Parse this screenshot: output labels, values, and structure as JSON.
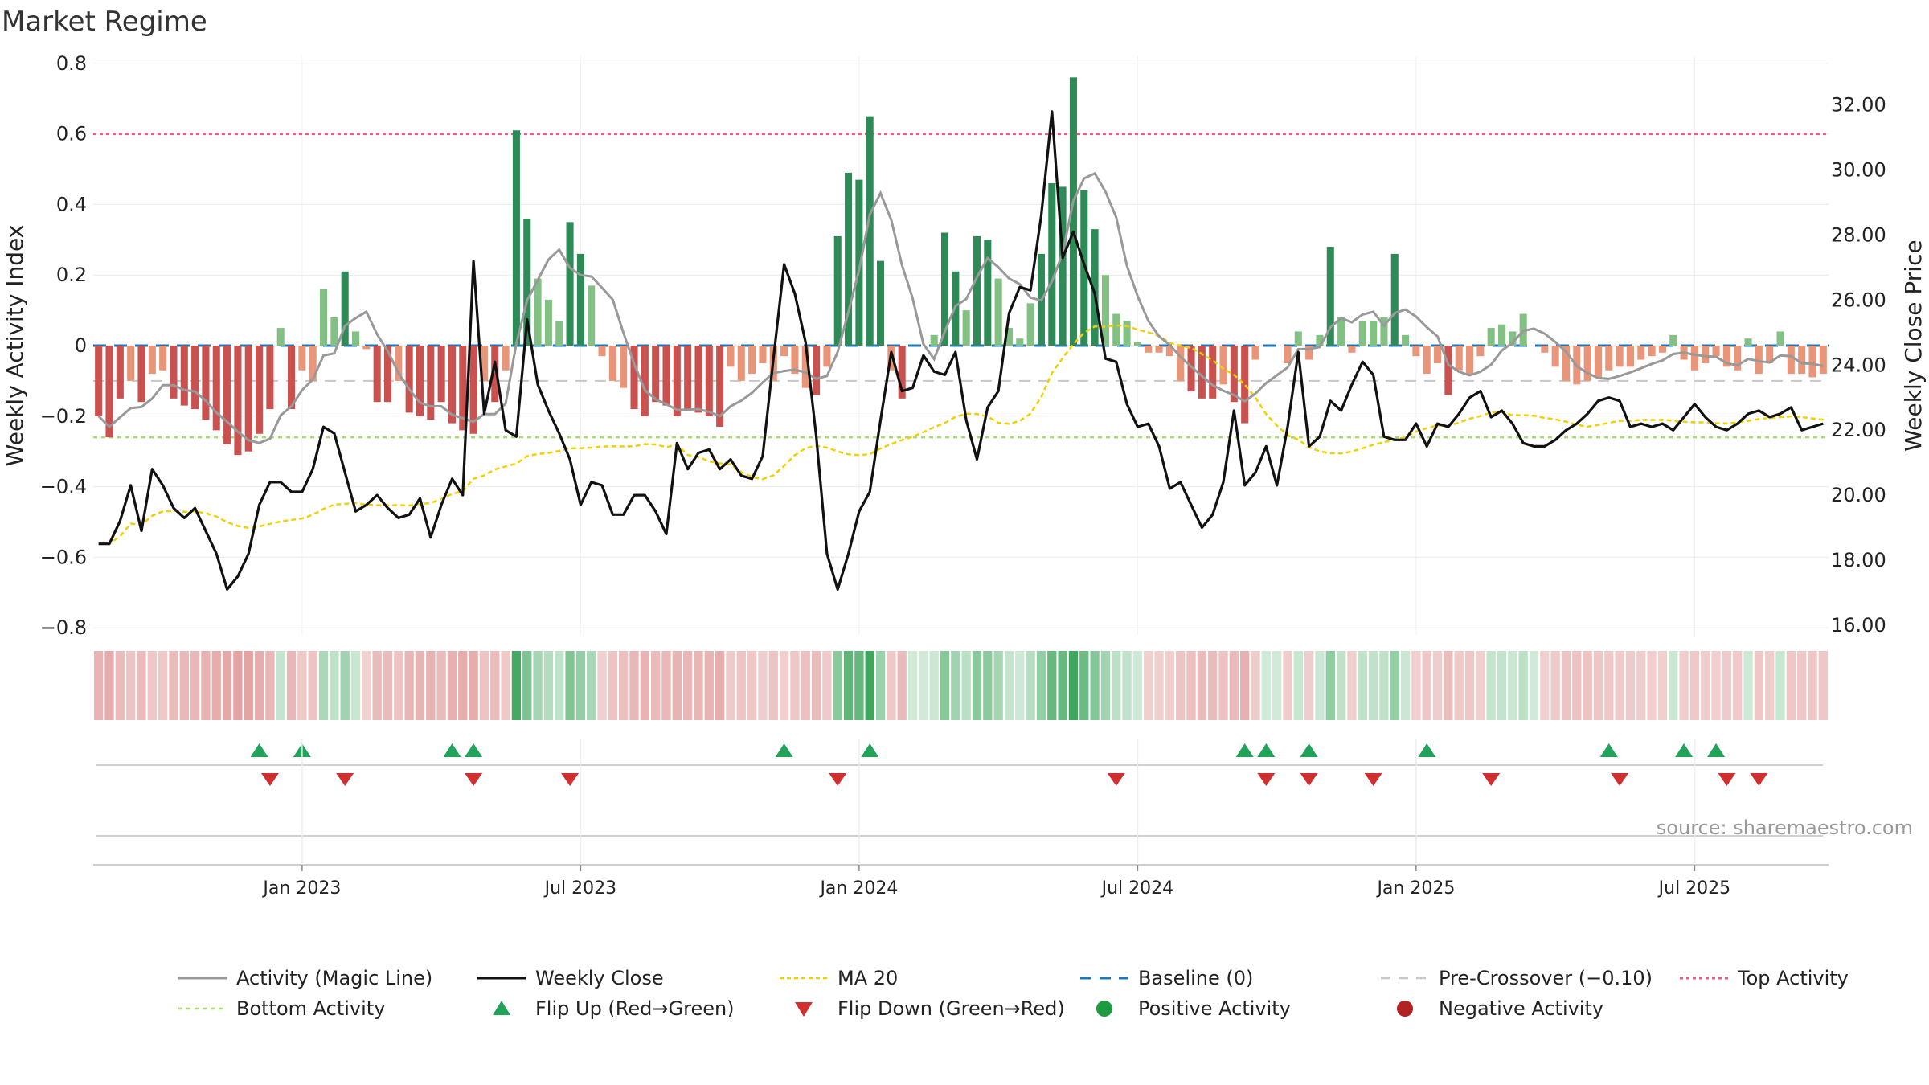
{
  "chart_data": {
    "type": "bar+line",
    "title": "Market Regime",
    "left_axis": {
      "label": "Weekly Activity Index",
      "ylim": [
        -0.82,
        0.82
      ],
      "ticks": [
        "0.8",
        "0.6",
        "0.4",
        "0.2",
        "0",
        "−0.2",
        "−0.4",
        "−0.6",
        "−0.8"
      ]
    },
    "right_axis": {
      "label": "Weekly Close Price",
      "ylim": [
        15.7,
        33.5
      ],
      "ticks": [
        "32.00",
        "30.00",
        "28.00",
        "26.00",
        "24.00",
        "22.00",
        "20.00",
        "18.00",
        "16.00"
      ]
    },
    "x_ticks": [
      "Jan 2023",
      "Jul 2023",
      "Jan 2024",
      "Jul 2024",
      "Jan 2025",
      "Jul 2025"
    ],
    "reference_lines": {
      "top_activity": 0.6,
      "bottom_activity": -0.26,
      "baseline": 0,
      "pre_crossover": -0.1
    },
    "colors": {
      "strong_up": "#2e8b57",
      "weak_up": "#82c084",
      "strong_down": "#c9514f",
      "weak_down": "#e8957a",
      "magic": "#999999",
      "close": "#111111",
      "ma": "#f0d000",
      "baseline": "#1f77b4",
      "top": "#e0608a",
      "bottom": "#a8d878",
      "precross": "#c8c8c8",
      "flip_up": "#22a35a",
      "flip_down": "#d03030"
    },
    "activity_weekly": [
      -0.2,
      -0.26,
      -0.15,
      -0.1,
      -0.16,
      -0.08,
      -0.07,
      -0.15,
      -0.17,
      -0.18,
      -0.21,
      -0.24,
      -0.28,
      -0.31,
      -0.3,
      -0.25,
      -0.18,
      0.05,
      -0.18,
      -0.07,
      -0.1,
      0.16,
      0.08,
      0.21,
      0.04,
      -0.01,
      -0.16,
      -0.16,
      -0.1,
      -0.19,
      -0.2,
      -0.21,
      -0.16,
      -0.22,
      -0.24,
      -0.25,
      -0.1,
      -0.16,
      -0.07,
      0.61,
      0.36,
      0.19,
      0.13,
      0.07,
      0.35,
      0.26,
      0.17,
      -0.03,
      -0.1,
      -0.12,
      -0.18,
      -0.2,
      -0.16,
      -0.17,
      -0.2,
      -0.18,
      -0.19,
      -0.2,
      -0.23,
      -0.06,
      -0.1,
      -0.08,
      -0.05,
      -0.1,
      -0.03,
      -0.08,
      -0.12,
      -0.14,
      -0.06,
      0.31,
      0.49,
      0.47,
      0.65,
      0.24,
      -0.07,
      -0.15,
      0.0,
      0.0,
      0.03,
      0.32,
      0.21,
      0.1,
      0.31,
      0.3,
      0.19,
      0.05,
      0.02,
      0.12,
      0.26,
      0.46,
      0.45,
      0.76,
      0.44,
      0.33,
      0.2,
      0.09,
      0.07,
      0.01,
      -0.02,
      -0.02,
      -0.03,
      -0.1,
      -0.13,
      -0.15,
      -0.15,
      -0.11,
      -0.16,
      -0.22,
      -0.04,
      0.0,
      0.0,
      -0.05,
      0.04,
      -0.04,
      0.03,
      0.28,
      0.08,
      -0.02,
      0.07,
      0.07,
      0.08,
      0.26,
      0.03,
      -0.03,
      -0.08,
      -0.05,
      -0.14,
      -0.07,
      -0.08,
      -0.03,
      0.05,
      0.06,
      0.04,
      0.09,
      0.0,
      -0.02,
      -0.06,
      -0.1,
      -0.11,
      -0.1,
      -0.09,
      -0.07,
      -0.06,
      -0.06,
      -0.04,
      -0.03,
      -0.02,
      0.03,
      -0.04,
      -0.07,
      -0.05,
      -0.03,
      -0.06,
      -0.07,
      0.02,
      -0.08,
      -0.05,
      0.04,
      -0.08,
      -0.08,
      -0.09,
      -0.08
    ],
    "weekly_close": [
      18.5,
      18.5,
      19.2,
      20.3,
      18.9,
      20.8,
      20.3,
      19.6,
      19.3,
      19.6,
      18.9,
      18.2,
      17.1,
      17.5,
      18.2,
      19.7,
      20.4,
      20.4,
      20.1,
      20.1,
      20.8,
      22.1,
      21.9,
      20.7,
      19.5,
      19.7,
      20.0,
      19.6,
      19.3,
      19.4,
      19.9,
      18.7,
      19.7,
      20.5,
      20.0,
      27.2,
      22.5,
      24.1,
      22.0,
      21.8,
      25.4,
      23.4,
      22.6,
      21.9,
      21.1,
      19.7,
      20.4,
      20.3,
      19.4,
      19.4,
      20.0,
      20.0,
      19.5,
      18.8,
      21.6,
      20.8,
      21.3,
      21.4,
      20.8,
      21.1,
      20.6,
      20.5,
      21.2,
      24.2,
      27.1,
      26.2,
      24.7,
      21.8,
      18.2,
      17.1,
      18.2,
      19.5,
      20.1,
      22.3,
      24.4,
      23.2,
      23.3,
      24.3,
      23.8,
      23.7,
      24.4,
      22.3,
      21.1,
      22.7,
      23.2,
      25.6,
      26.4,
      26.3,
      28.6,
      31.8,
      27.3,
      28.1,
      27.1,
      26.2,
      24.2,
      24.1,
      22.8,
      22.1,
      22.2,
      21.5,
      20.2,
      20.4,
      19.7,
      19.0,
      19.4,
      20.4,
      22.6,
      20.3,
      20.7,
      21.5,
      20.3,
      22.1,
      24.4,
      21.5,
      21.8,
      22.9,
      22.6,
      23.4,
      24.1,
      23.7,
      21.8,
      21.7,
      21.7,
      22.2,
      21.5,
      22.2,
      22.1,
      22.5,
      23.0,
      23.2,
      22.4,
      22.6,
      22.2,
      21.6,
      21.5,
      21.5,
      21.7,
      22.0,
      22.2,
      22.5,
      22.9,
      23.0,
      22.9,
      22.1,
      22.2,
      22.1,
      22.2,
      22.0,
      22.4,
      22.8,
      22.4,
      22.1,
      22.0,
      22.2,
      22.5,
      22.6,
      22.4,
      22.5,
      22.7,
      22.0,
      22.1,
      22.2
    ],
    "flip_up_weeks": [
      15,
      19,
      33,
      35,
      64,
      72,
      107,
      109,
      113,
      124,
      141,
      148,
      151
    ],
    "flip_down_weeks": [
      16,
      23,
      35,
      44,
      69,
      95,
      109,
      113,
      119,
      130,
      142,
      152,
      155
    ],
    "source": "source: sharemaestro.com",
    "legend": [
      "Activity (Magic Line)",
      "Weekly Close",
      "MA 20",
      "Baseline (0)",
      "Pre-Crossover (−0.10)",
      "Top Activity",
      "Bottom Activity",
      "Flip Up (Red→Green)",
      "Flip Down (Green→Red)",
      "Positive Activity",
      "Negative Activity"
    ]
  }
}
